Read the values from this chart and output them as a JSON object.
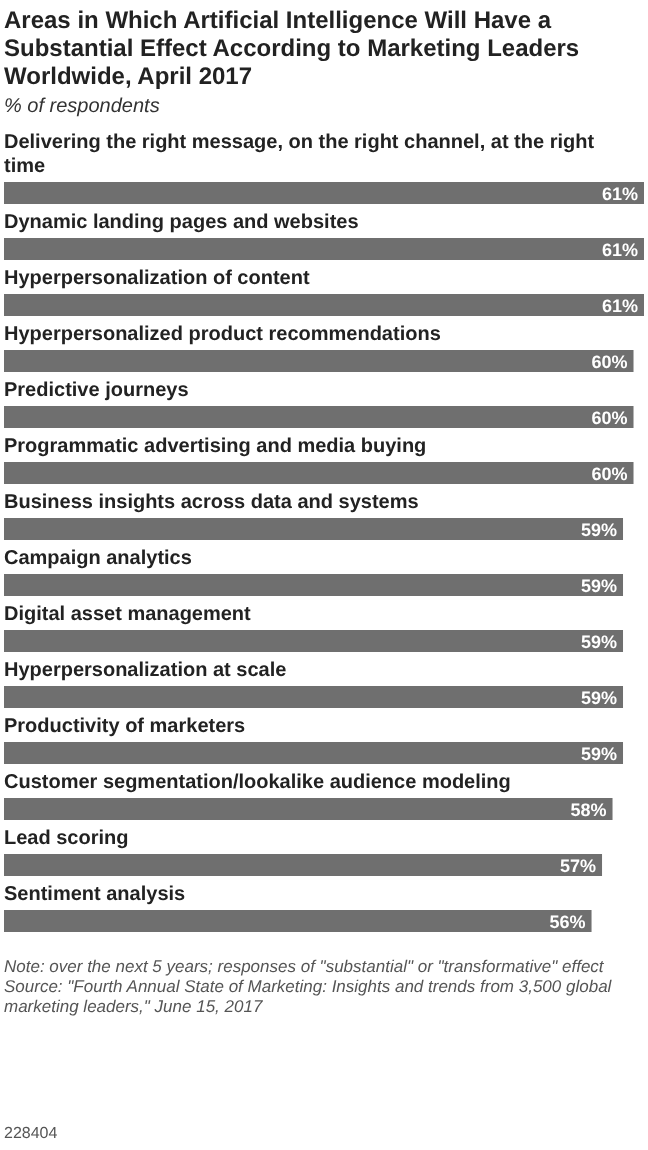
{
  "chart_data": {
    "type": "bar",
    "orientation": "horizontal",
    "title": "Areas in Which Artificial Intelligence Will Have a Substantial Effect According to Marketing Leaders Worldwide, April 2017",
    "subtitle": "% of respondents",
    "categories": [
      "Delivering the right message, on the right channel, at the right time",
      "Dynamic landing pages and websites",
      "Hyperpersonalization of content",
      "Hyperpersonalized product recommendations",
      "Predictive journeys",
      "Programmatic advertising and media buying",
      "Business insights across data and systems",
      "Campaign analytics",
      "Digital asset management",
      "Hyperpersonalization at scale",
      "Productivity of marketers",
      "Customer segmentation/lookalike audience modeling",
      "Lead scoring",
      "Sentiment analysis"
    ],
    "values": [
      61,
      61,
      61,
      60,
      60,
      60,
      59,
      59,
      59,
      59,
      59,
      58,
      57,
      56
    ],
    "value_labels": [
      "61%",
      "61%",
      "61%",
      "60%",
      "60%",
      "60%",
      "59%",
      "59%",
      "59%",
      "59%",
      "59%",
      "58%",
      "57%",
      "56%"
    ],
    "color": "#6f6f6f",
    "annotations": [
      "Note: over the next 5 years; responses of \"substantial\" or \"transformative\" effect",
      "Source: \"Fourth Annual State of Marketing: Insights and trends from 3,500 global marketing leaders,\" June 15, 2017",
      "228404"
    ]
  }
}
